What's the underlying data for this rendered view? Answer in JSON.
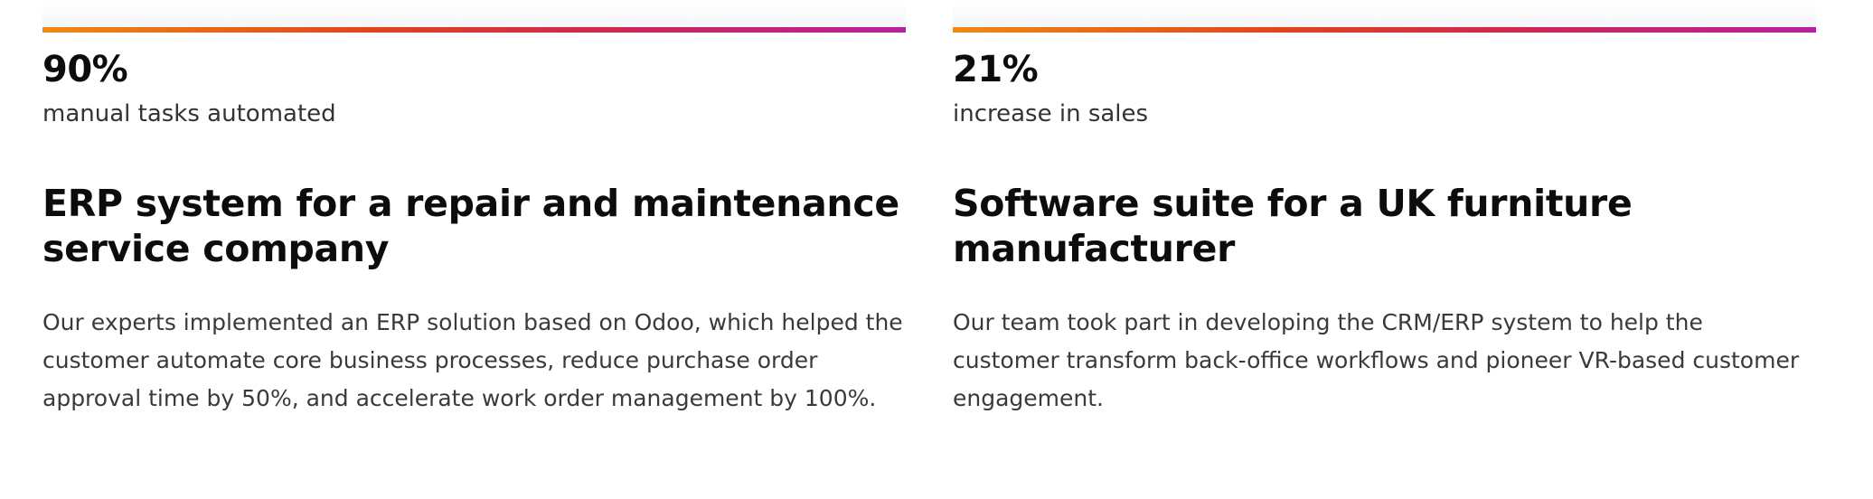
{
  "cases": [
    {
      "stat_value": "90%",
      "stat_caption": "manual tasks automated",
      "title": "ERP system for a repair and maintenance service company",
      "description": "Our experts implemented an ERP solution based on Odoo, which helped the customer automate core business processes, reduce purchase order approval time by 50%, and accelerate work order management by 100%."
    },
    {
      "stat_value": "21%",
      "stat_caption": "increase in sales",
      "title": "Software suite for a UK furniture manufacturer",
      "description": "Our team took part in developing the CRM/ERP system to help the customer transform back-office workflows and pioneer VR-based customer engagement."
    }
  ],
  "colors": {
    "accent_gradient": [
      "#ef8a12",
      "#e0451e",
      "#cf2a4a",
      "#b81f9e"
    ],
    "text_primary": "#0c0c0c",
    "text_secondary": "#3a3a3a"
  }
}
